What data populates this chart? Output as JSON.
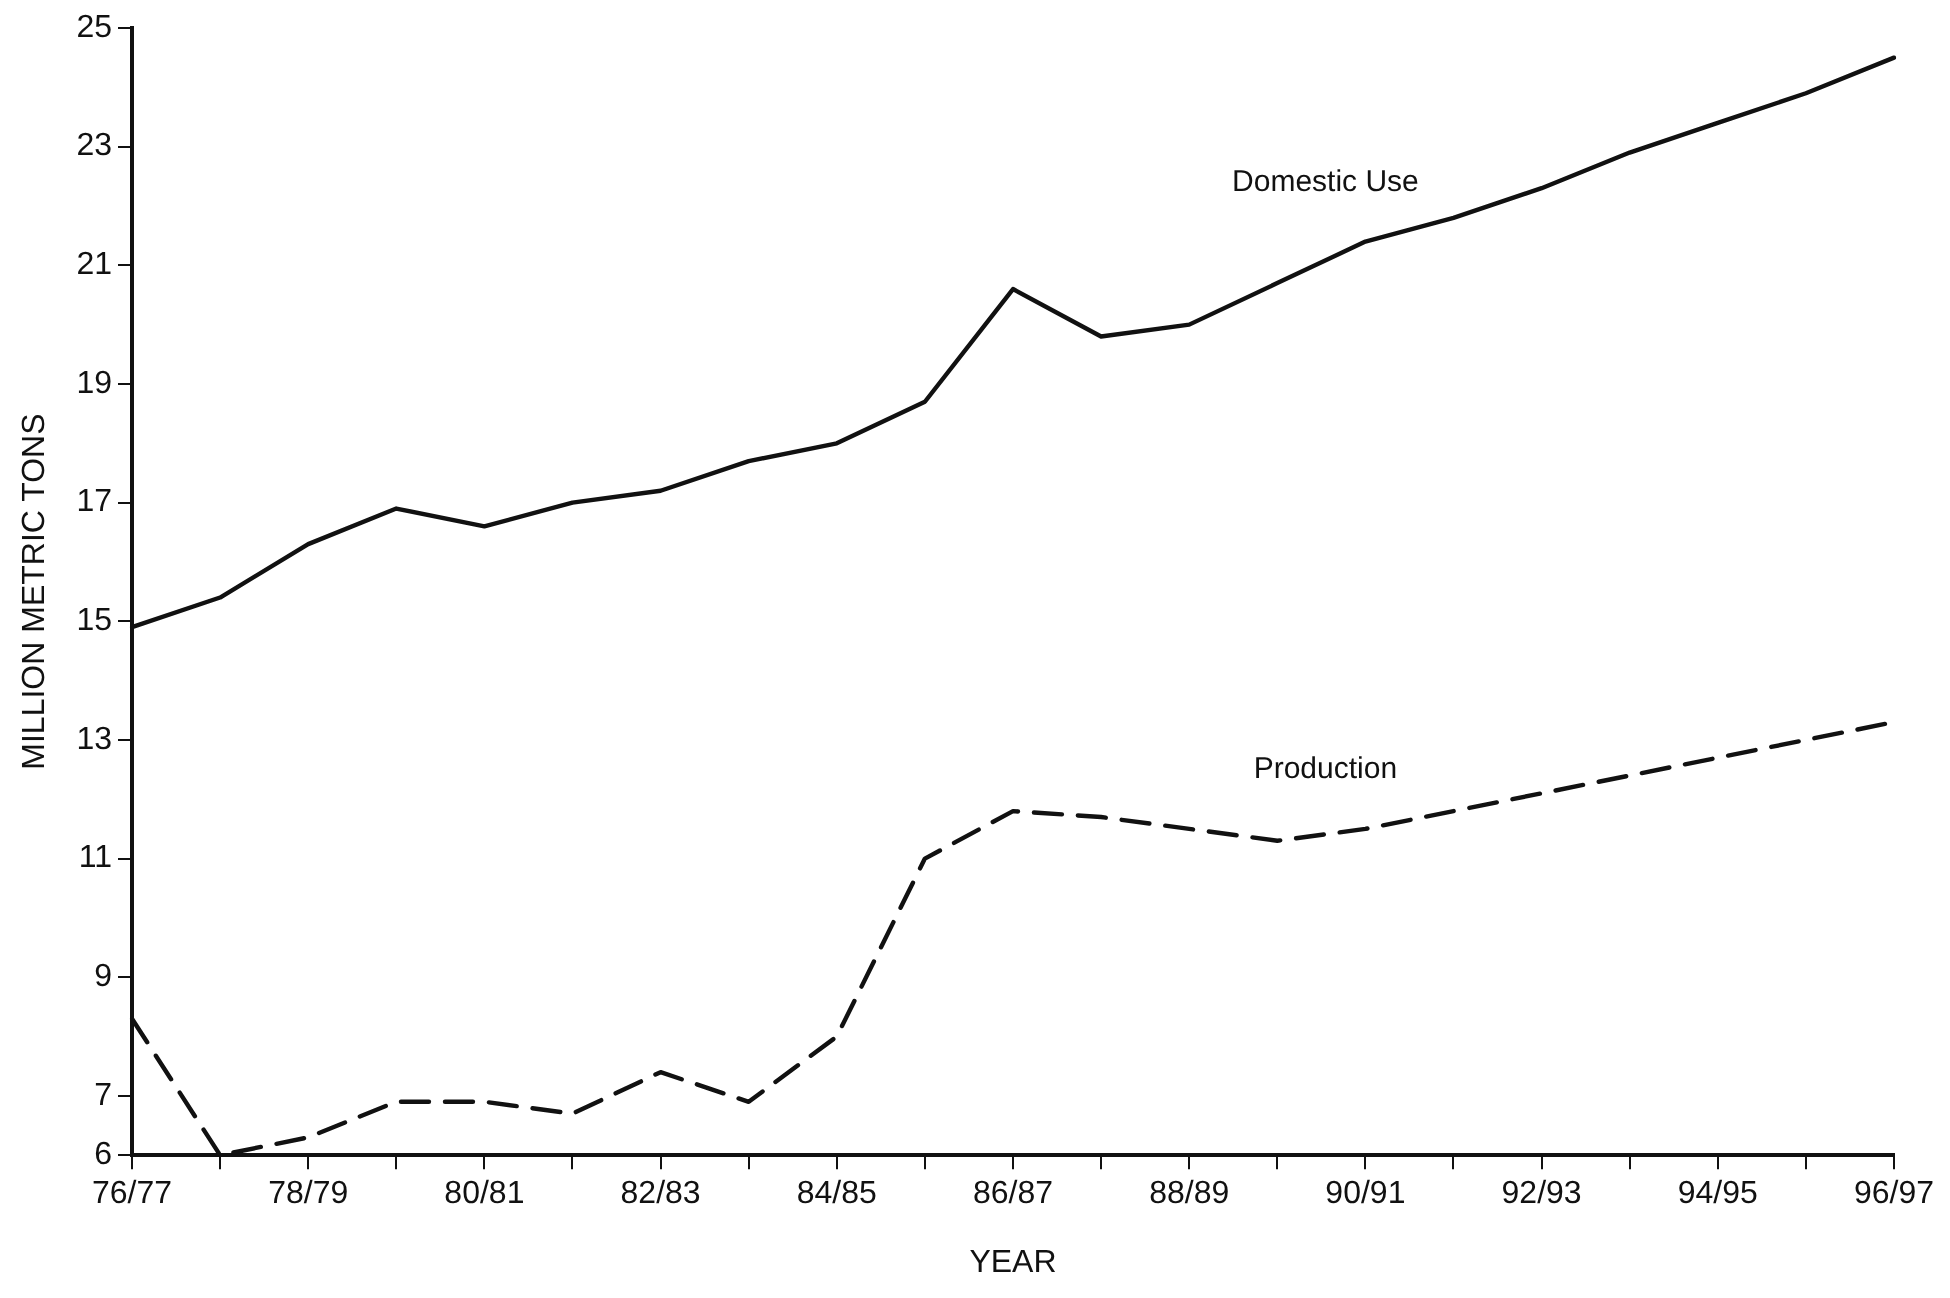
{
  "chart_data": {
    "type": "line",
    "xlabel": "YEAR",
    "ylabel": "MILLION METRIC TONS",
    "categories": [
      "76/77",
      null,
      "78/79",
      null,
      "80/81",
      null,
      "82/83",
      null,
      "84/85",
      null,
      "86/87",
      null,
      "88/89",
      null,
      "90/91",
      null,
      "92/93",
      null,
      "94/95",
      null,
      "96/97"
    ],
    "series": [
      {
        "name": "Domestic Use",
        "color": "#111111",
        "line_style": "solid",
        "values": [
          14.9,
          15.4,
          16.3,
          16.9,
          16.6,
          17.0,
          17.2,
          17.7,
          18.0,
          18.7,
          20.6,
          19.8,
          20.0,
          20.7,
          21.4,
          21.8,
          22.3,
          22.9,
          23.4,
          23.9,
          24.5
        ]
      },
      {
        "name": "Production",
        "color": "#111111",
        "line_style": "dashed",
        "values": [
          8.3,
          6.0,
          6.3,
          6.9,
          6.9,
          6.7,
          7.4,
          6.9,
          8.0,
          11.0,
          11.8,
          11.7,
          11.5,
          11.3,
          11.5,
          11.8,
          12.1,
          12.4,
          12.7,
          13.0,
          13.3
        ]
      }
    ],
    "ylim": [
      6,
      25
    ],
    "yticks": [
      6,
      7,
      9,
      11,
      13,
      15,
      17,
      19,
      21,
      23,
      25
    ],
    "marker": "none",
    "grid": false,
    "legend": false
  }
}
